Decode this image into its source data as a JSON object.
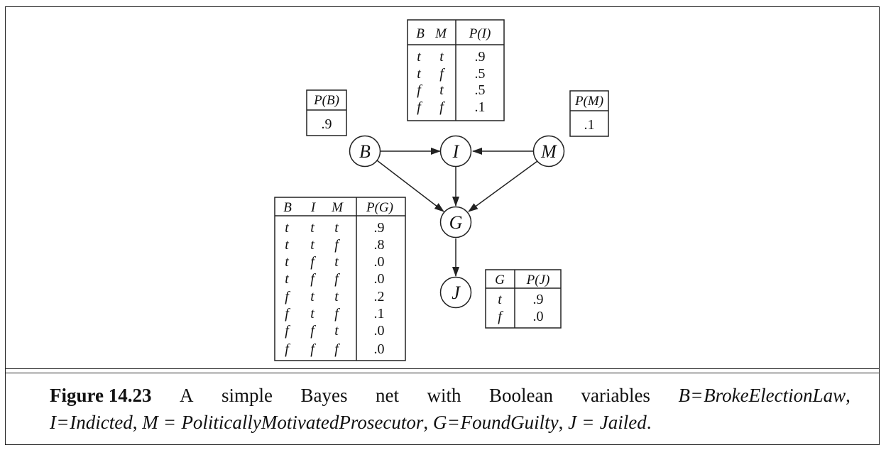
{
  "nodes": {
    "B": "B",
    "I": "I",
    "M": "M",
    "G": "G",
    "J": "J"
  },
  "cpt_B": {
    "header": "P(B)",
    "value": ".9"
  },
  "cpt_M": {
    "header": "P(M)",
    "value": ".1"
  },
  "cpt_I": {
    "headers": [
      "B",
      "M",
      "P(I)"
    ],
    "rows": [
      [
        "t",
        "t",
        ".9"
      ],
      [
        "t",
        "f",
        ".5"
      ],
      [
        "f",
        "t",
        ".5"
      ],
      [
        "f",
        "f",
        ".1"
      ]
    ]
  },
  "cpt_G": {
    "headers": [
      "B",
      "I",
      "M",
      "P(G)"
    ],
    "rows": [
      [
        "t",
        "t",
        "t",
        ".9"
      ],
      [
        "t",
        "t",
        "f",
        ".8"
      ],
      [
        "t",
        "f",
        "t",
        ".0"
      ],
      [
        "t",
        "f",
        "f",
        ".0"
      ],
      [
        "f",
        "t",
        "t",
        ".2"
      ],
      [
        "f",
        "t",
        "f",
        ".1"
      ],
      [
        "f",
        "f",
        "t",
        ".0"
      ],
      [
        "f",
        "f",
        "f",
        ".0"
      ]
    ]
  },
  "cpt_J": {
    "headers": [
      "G",
      "P(J)"
    ],
    "rows": [
      [
        "t",
        ".9"
      ],
      [
        "f",
        ".0"
      ]
    ]
  },
  "caption": {
    "label": "Figure 14.23",
    "w1": "A",
    "w2": "simple",
    "w3": "Bayes",
    "w4": "net",
    "w5": "with",
    "w6": "Boolean",
    "w7": "variables",
    "b_var": "B",
    "b_val": "BrokeElectionLaw",
    "i_var": "I",
    "i_val": "Indicted",
    "m_var": "M",
    "m_val": "PoliticallyMotivatedProsecutor",
    "g_var": "G",
    "g_val": "FoundGuilty",
    "j_var": "J",
    "j_val": "Jailed"
  }
}
